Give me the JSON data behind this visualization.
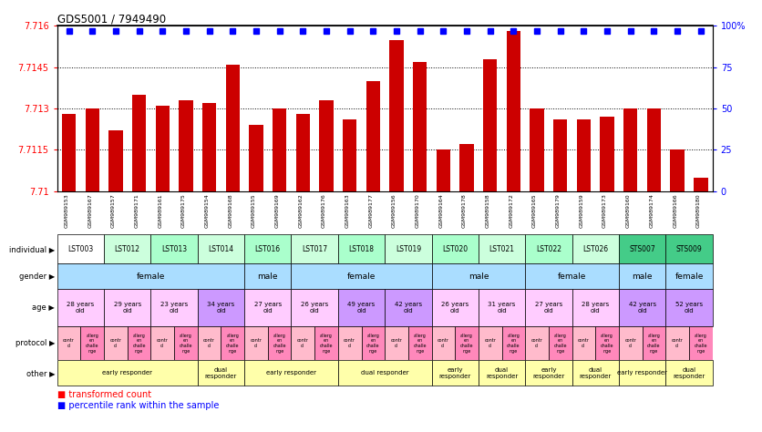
{
  "title": "GDS5001 / 7949490",
  "samples": [
    "GSM989153",
    "GSM989167",
    "GSM989157",
    "GSM989171",
    "GSM989161",
    "GSM989175",
    "GSM989154",
    "GSM989168",
    "GSM989155",
    "GSM989169",
    "GSM989162",
    "GSM989176",
    "GSM989163",
    "GSM989177",
    "GSM989156",
    "GSM989170",
    "GSM989164",
    "GSM989178",
    "GSM989158",
    "GSM989172",
    "GSM989165",
    "GSM989179",
    "GSM989159",
    "GSM989173",
    "GSM989160",
    "GSM989174",
    "GSM989166",
    "GSM989180"
  ],
  "bar_values": [
    7.7128,
    7.713,
    7.7122,
    7.7135,
    7.7131,
    7.7133,
    7.7132,
    7.7146,
    7.7124,
    7.713,
    7.7128,
    7.7133,
    7.7126,
    7.714,
    7.7155,
    7.7147,
    7.7115,
    7.7117,
    7.7148,
    7.7158,
    7.713,
    7.7126,
    7.7126,
    7.7127,
    7.713,
    7.713,
    7.7115,
    7.7105
  ],
  "ylim_left": [
    7.71,
    7.716
  ],
  "ylim_right": [
    0,
    100
  ],
  "yticks_left": [
    7.71,
    7.7115,
    7.713,
    7.7145,
    7.716
  ],
  "yticks_right": [
    0,
    25,
    50,
    75,
    100
  ],
  "individuals": [
    {
      "label": "LST003",
      "start": 0,
      "end": 2,
      "color": "#ffffff"
    },
    {
      "label": "LST012",
      "start": 2,
      "end": 4,
      "color": "#ccffdd"
    },
    {
      "label": "LST013",
      "start": 4,
      "end": 6,
      "color": "#aaffcc"
    },
    {
      "label": "LST014",
      "start": 6,
      "end": 8,
      "color": "#ccffdd"
    },
    {
      "label": "LST016",
      "start": 8,
      "end": 10,
      "color": "#aaffcc"
    },
    {
      "label": "LST017",
      "start": 10,
      "end": 12,
      "color": "#ccffdd"
    },
    {
      "label": "LST018",
      "start": 12,
      "end": 14,
      "color": "#aaffcc"
    },
    {
      "label": "LST019",
      "start": 14,
      "end": 16,
      "color": "#ccffdd"
    },
    {
      "label": "LST020",
      "start": 16,
      "end": 18,
      "color": "#aaffcc"
    },
    {
      "label": "LST021",
      "start": 18,
      "end": 20,
      "color": "#ccffdd"
    },
    {
      "label": "LST022",
      "start": 20,
      "end": 22,
      "color": "#aaffcc"
    },
    {
      "label": "LST026",
      "start": 22,
      "end": 24,
      "color": "#ccffdd"
    },
    {
      "label": "STS007",
      "start": 24,
      "end": 26,
      "color": "#44cc88"
    },
    {
      "label": "STS009",
      "start": 26,
      "end": 28,
      "color": "#44cc88"
    }
  ],
  "gender_groups": [
    {
      "label": "female",
      "start": 0,
      "end": 8
    },
    {
      "label": "male",
      "start": 8,
      "end": 10
    },
    {
      "label": "female",
      "start": 10,
      "end": 16
    },
    {
      "label": "male",
      "start": 16,
      "end": 20
    },
    {
      "label": "female",
      "start": 20,
      "end": 24
    },
    {
      "label": "male",
      "start": 24,
      "end": 26
    },
    {
      "label": "female",
      "start": 26,
      "end": 28
    }
  ],
  "age_groups": [
    {
      "label": "28 years\nold",
      "start": 0,
      "end": 2,
      "color": "#ffccff"
    },
    {
      "label": "29 years\nold",
      "start": 2,
      "end": 4,
      "color": "#ffccff"
    },
    {
      "label": "23 years\nold",
      "start": 4,
      "end": 6,
      "color": "#ffccff"
    },
    {
      "label": "34 years\nold",
      "start": 6,
      "end": 8,
      "color": "#cc99ff"
    },
    {
      "label": "27 years\nold",
      "start": 8,
      "end": 10,
      "color": "#ffccff"
    },
    {
      "label": "26 years\nold",
      "start": 10,
      "end": 12,
      "color": "#ffccff"
    },
    {
      "label": "49 years\nold",
      "start": 12,
      "end": 14,
      "color": "#cc99ff"
    },
    {
      "label": "42 years\nold",
      "start": 14,
      "end": 16,
      "color": "#cc99ff"
    },
    {
      "label": "26 years\nold",
      "start": 16,
      "end": 18,
      "color": "#ffccff"
    },
    {
      "label": "31 years\nold",
      "start": 18,
      "end": 20,
      "color": "#ffccff"
    },
    {
      "label": "27 years\nold",
      "start": 20,
      "end": 22,
      "color": "#ffccff"
    },
    {
      "label": "28 years\nold",
      "start": 22,
      "end": 24,
      "color": "#ffccff"
    },
    {
      "label": "42 years\nold",
      "start": 24,
      "end": 26,
      "color": "#cc99ff"
    },
    {
      "label": "52 years\nold",
      "start": 26,
      "end": 28,
      "color": "#cc99ff"
    }
  ],
  "other_groups": [
    {
      "label": "early responder",
      "start": 0,
      "end": 6
    },
    {
      "label": "dual\nresponder",
      "start": 6,
      "end": 8
    },
    {
      "label": "early responder",
      "start": 8,
      "end": 12
    },
    {
      "label": "dual responder",
      "start": 12,
      "end": 16
    },
    {
      "label": "early\nresponder",
      "start": 16,
      "end": 18
    },
    {
      "label": "dual\nresponder",
      "start": 18,
      "end": 20
    },
    {
      "label": "early\nresponder",
      "start": 20,
      "end": 22
    },
    {
      "label": "dual\nresponder",
      "start": 22,
      "end": 24
    },
    {
      "label": "early responder",
      "start": 24,
      "end": 26
    },
    {
      "label": "dual\nresponder",
      "start": 26,
      "end": 28
    }
  ],
  "gender_color": "#aaddff",
  "other_color": "#ffffaa",
  "proto_colors": [
    "#ffbbcc",
    "#ff88bb"
  ],
  "proto_labels": [
    "contr\nol",
    "allerg\nen\nchalle\nnge"
  ]
}
